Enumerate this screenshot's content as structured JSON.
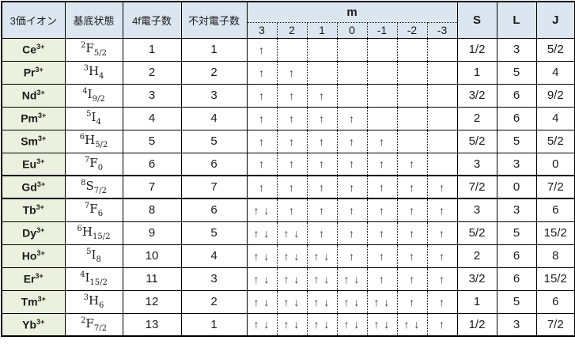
{
  "columns": {
    "ion": "3価イオン",
    "ground_state": "基底状態",
    "f_electrons": "4f電子数",
    "unpaired": "不対電子数",
    "m": "m",
    "m_sublabels": [
      "3",
      "2",
      "1",
      "0",
      "-1",
      "-2",
      "-3"
    ],
    "s": "S",
    "l": "L",
    "j": "J"
  },
  "colors": {
    "header_bg": "#dce6f1",
    "ion_col_bg": "#ebf1de",
    "border": "#000000",
    "arrow": "#31315f",
    "text": "#1a1a1a"
  },
  "rows": [
    {
      "ion": "Ce",
      "charge": "3+",
      "gs_sup": "2",
      "gs_letter": "F",
      "gs_sub": "5/2",
      "f": "1",
      "unpaired": "1",
      "m": [
        "↑",
        "",
        "",
        "",
        "",
        "",
        ""
      ],
      "s": "1/2",
      "l": "3",
      "j": "5/2",
      "emphasized": false
    },
    {
      "ion": "Pr",
      "charge": "3+",
      "gs_sup": "3",
      "gs_letter": "H",
      "gs_sub": "4",
      "f": "2",
      "unpaired": "2",
      "m": [
        "↑",
        "↑",
        "",
        "",
        "",
        "",
        ""
      ],
      "s": "1",
      "l": "5",
      "j": "4",
      "emphasized": false
    },
    {
      "ion": "Nd",
      "charge": "3+",
      "gs_sup": "4",
      "gs_letter": "I",
      "gs_sub": "9/2",
      "f": "3",
      "unpaired": "3",
      "m": [
        "↑",
        "↑",
        "↑",
        "",
        "",
        "",
        ""
      ],
      "s": "3/2",
      "l": "6",
      "j": "9/2",
      "emphasized": false
    },
    {
      "ion": "Pm",
      "charge": "3+",
      "gs_sup": "5",
      "gs_letter": "I",
      "gs_sub": "4",
      "f": "4",
      "unpaired": "4",
      "m": [
        "↑",
        "↑",
        "↑",
        "↑",
        "",
        "",
        ""
      ],
      "s": "2",
      "l": "6",
      "j": "4",
      "emphasized": false
    },
    {
      "ion": "Sm",
      "charge": "3+",
      "gs_sup": "6",
      "gs_letter": "H",
      "gs_sub": "5/2",
      "f": "5",
      "unpaired": "5",
      "m": [
        "↑",
        "↑",
        "↑",
        "↑",
        "↑",
        "",
        ""
      ],
      "s": "5/2",
      "l": "5",
      "j": "5/2",
      "emphasized": false
    },
    {
      "ion": "Eu",
      "charge": "3+",
      "gs_sup": "7",
      "gs_letter": "F",
      "gs_sub": "0",
      "f": "6",
      "unpaired": "6",
      "m": [
        "↑",
        "↑",
        "↑",
        "↑",
        "↑",
        "↑",
        ""
      ],
      "s": "3",
      "l": "3",
      "j": "0",
      "emphasized": false
    },
    {
      "ion": "Gd",
      "charge": "3+",
      "gs_sup": "8",
      "gs_letter": "S",
      "gs_sub": "7/2",
      "f": "7",
      "unpaired": "7",
      "m": [
        "↑",
        "↑",
        "↑",
        "↑",
        "↑",
        "↑",
        "↑"
      ],
      "s": "7/2",
      "l": "0",
      "j": "7/2",
      "emphasized": true
    },
    {
      "ion": "Tb",
      "charge": "3+",
      "gs_sup": "7",
      "gs_letter": "F",
      "gs_sub": "6",
      "f": "8",
      "unpaired": "6",
      "m": [
        "↑ ↓",
        "↑",
        "↑",
        "↑",
        "↑",
        "↑",
        "↑"
      ],
      "s": "3",
      "l": "3",
      "j": "6",
      "emphasized": false
    },
    {
      "ion": "Dy",
      "charge": "3+",
      "gs_sup": "6",
      "gs_letter": "H",
      "gs_sub": "15/2",
      "f": "9",
      "unpaired": "5",
      "m": [
        "↑ ↓",
        "↑ ↓",
        "↑",
        "↑",
        "↑",
        "↑",
        "↑"
      ],
      "s": "5/2",
      "l": "5",
      "j": "15/2",
      "emphasized": false
    },
    {
      "ion": "Ho",
      "charge": "3+",
      "gs_sup": "5",
      "gs_letter": "I",
      "gs_sub": "8",
      "f": "10",
      "unpaired": "4",
      "m": [
        "↑ ↓",
        "↑ ↓",
        "↑ ↓",
        "↑",
        "↑",
        "↑",
        "↑"
      ],
      "s": "2",
      "l": "6",
      "j": "8",
      "emphasized": false
    },
    {
      "ion": "Er",
      "charge": "3+",
      "gs_sup": "4",
      "gs_letter": "I",
      "gs_sub": "15/2",
      "f": "11",
      "unpaired": "3",
      "m": [
        "↑ ↓",
        "↑ ↓",
        "↑ ↓",
        "↑ ↓",
        "↑",
        "↑",
        "↑"
      ],
      "s": "3/2",
      "l": "6",
      "j": "15/2",
      "emphasized": false
    },
    {
      "ion": "Tm",
      "charge": "3+",
      "gs_sup": "3",
      "gs_letter": "H",
      "gs_sub": "6",
      "f": "12",
      "unpaired": "2",
      "m": [
        "↑ ↓",
        "↑ ↓",
        "↑ ↓",
        "↑ ↓",
        "↑ ↓",
        "↑",
        "↑"
      ],
      "s": "1",
      "l": "5",
      "j": "6",
      "emphasized": false
    },
    {
      "ion": "Yb",
      "charge": "3+",
      "gs_sup": "2",
      "gs_letter": "F",
      "gs_sub": "7/2",
      "f": "13",
      "unpaired": "1",
      "m": [
        "↑ ↓",
        "↑ ↓",
        "↑ ↓",
        "↑ ↓",
        "↑ ↓",
        "↑ ↓",
        "↑"
      ],
      "s": "1/2",
      "l": "3",
      "j": "7/2",
      "emphasized": false
    }
  ]
}
